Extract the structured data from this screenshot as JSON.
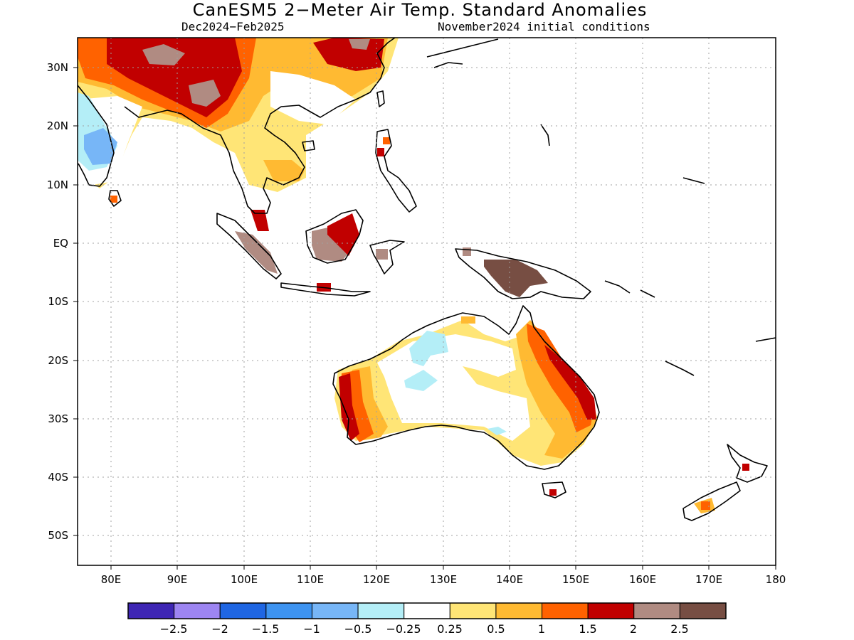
{
  "title": "CanESM5 2−Meter Air Temp. Standard Anomalies",
  "subtitle_left": "Dec2024−Feb2025",
  "subtitle_right": "November2024 initial conditions",
  "map": {
    "lon_range": [
      75,
      180
    ],
    "lat_range": [
      -55,
      35
    ],
    "lon_ticks": [
      "80E",
      "90E",
      "100E",
      "110E",
      "120E",
      "130E",
      "140E",
      "150E",
      "160E",
      "170E",
      "180"
    ],
    "lat_ticks": [
      "30N",
      "20N",
      "10N",
      "EQ",
      "10S",
      "20S",
      "30S",
      "40S",
      "50S"
    ],
    "grid": true
  },
  "colorbar": {
    "colors": [
      "#3e26b4",
      "#9d85f2",
      "#1f66e3",
      "#3d93f0",
      "#77b6f7",
      "#b4eef7",
      "#ffffff",
      "#ffe576",
      "#ffba32",
      "#ff6200",
      "#c10000",
      "#b08b82",
      "#774e43"
    ],
    "labels": [
      "−2.5",
      "−2",
      "−1.5",
      "−1",
      "−0.5",
      "−0.25",
      "0.25",
      "0.5",
      "1",
      "1.5",
      "2",
      "2.5"
    ]
  }
}
